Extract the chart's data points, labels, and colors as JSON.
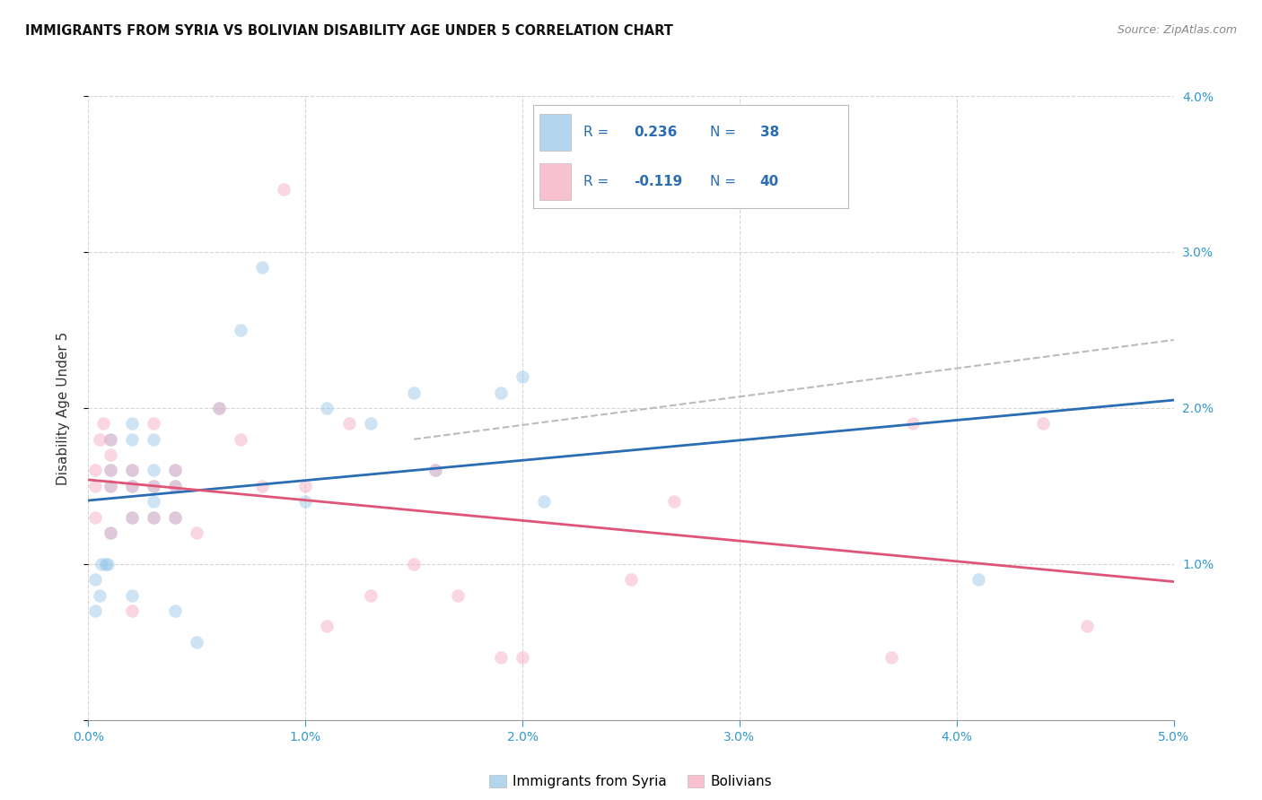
{
  "title": "IMMIGRANTS FROM SYRIA VS BOLIVIAN DISABILITY AGE UNDER 5 CORRELATION CHART",
  "source": "Source: ZipAtlas.com",
  "ylabel": "Disability Age Under 5",
  "xlim": [
    0.0,
    0.05
  ],
  "ylim": [
    0.0,
    0.04
  ],
  "xticks": [
    0.0,
    0.01,
    0.02,
    0.03,
    0.04,
    0.05
  ],
  "yticks": [
    0.0,
    0.01,
    0.02,
    0.03,
    0.04
  ],
  "legend1_label": "Immigrants from Syria",
  "legend2_label": "Bolivians",
  "R1": 0.236,
  "N1": 38,
  "R2": -0.119,
  "N2": 40,
  "color1": "#93c5e8",
  "color2": "#f4a7bc",
  "trendline1_color": "#2a6db5",
  "trendline2_color": "#e05577",
  "dash_line_color": "#bbbbbb",
  "legend_text_color": "#2a6db5",
  "background_color": "#ffffff",
  "grid_color": "#cccccc",
  "right_tick_color": "#3399cc",
  "bottom_tick_color": "#3399cc",
  "scatter1_x": [
    0.0003,
    0.0003,
    0.0005,
    0.0006,
    0.0008,
    0.0009,
    0.001,
    0.001,
    0.001,
    0.001,
    0.002,
    0.002,
    0.002,
    0.002,
    0.002,
    0.002,
    0.003,
    0.003,
    0.003,
    0.003,
    0.003,
    0.004,
    0.004,
    0.004,
    0.004,
    0.005,
    0.006,
    0.007,
    0.008,
    0.01,
    0.011,
    0.013,
    0.015,
    0.016,
    0.019,
    0.02,
    0.021,
    0.041
  ],
  "scatter1_y": [
    0.007,
    0.009,
    0.008,
    0.01,
    0.01,
    0.01,
    0.012,
    0.015,
    0.016,
    0.018,
    0.015,
    0.016,
    0.018,
    0.019,
    0.013,
    0.008,
    0.015,
    0.013,
    0.014,
    0.016,
    0.018,
    0.015,
    0.013,
    0.016,
    0.007,
    0.005,
    0.02,
    0.025,
    0.029,
    0.014,
    0.02,
    0.019,
    0.021,
    0.016,
    0.021,
    0.022,
    0.014,
    0.009
  ],
  "scatter2_x": [
    0.0003,
    0.0003,
    0.0003,
    0.0005,
    0.0007,
    0.001,
    0.001,
    0.001,
    0.001,
    0.001,
    0.002,
    0.002,
    0.002,
    0.002,
    0.003,
    0.003,
    0.003,
    0.004,
    0.004,
    0.004,
    0.005,
    0.006,
    0.007,
    0.008,
    0.009,
    0.01,
    0.011,
    0.012,
    0.013,
    0.015,
    0.016,
    0.017,
    0.019,
    0.02,
    0.025,
    0.027,
    0.037,
    0.038,
    0.044,
    0.046
  ],
  "scatter2_y": [
    0.013,
    0.015,
    0.016,
    0.018,
    0.019,
    0.012,
    0.015,
    0.016,
    0.017,
    0.018,
    0.013,
    0.015,
    0.016,
    0.007,
    0.013,
    0.015,
    0.019,
    0.013,
    0.015,
    0.016,
    0.012,
    0.02,
    0.018,
    0.015,
    0.034,
    0.015,
    0.006,
    0.019,
    0.008,
    0.01,
    0.016,
    0.008,
    0.004,
    0.004,
    0.009,
    0.014,
    0.004,
    0.019,
    0.019,
    0.006
  ],
  "marker_size": 110,
  "marker_alpha": 0.45
}
